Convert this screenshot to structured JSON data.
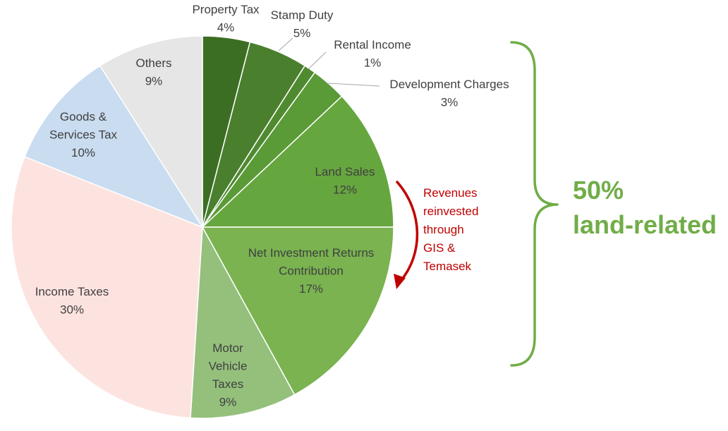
{
  "chart_data": {
    "type": "pie",
    "title": "",
    "slices": [
      {
        "label": "Property Tax",
        "value": 4,
        "display": "4%",
        "color": "#3b6e22"
      },
      {
        "label": "Stamp Duty",
        "value": 5,
        "display": "5%",
        "color": "#4a7f2e"
      },
      {
        "label": "Rental Income",
        "value": 1,
        "display": "1%",
        "color": "#4f8a30"
      },
      {
        "label": "Development Charges",
        "value": 3,
        "display": "3%",
        "color": "#5a9a37"
      },
      {
        "label": "Land Sales",
        "value": 12,
        "display": "12%",
        "color": "#66a63f"
      },
      {
        "label": "Net Investment Returns Contribution",
        "value": 17,
        "display": "17%",
        "color": "#7ab350"
      },
      {
        "label": "Motor Vehicle Taxes",
        "value": 9,
        "display": "9%",
        "color": "#94c07c"
      },
      {
        "label": "Income Taxes",
        "value": 30,
        "display": "30%",
        "color": "#fde3e0"
      },
      {
        "label": "Goods & Services Tax",
        "value": 10,
        "display": "10%",
        "color": "#c9dcf0"
      },
      {
        "label": "Others",
        "value": 9,
        "display": "9%",
        "color": "#e6e6e6"
      }
    ],
    "annotations": {
      "brace_text": [
        "50%",
        "land-related"
      ],
      "brace_color": "#70ad47",
      "arrow_text": [
        "Revenues",
        "reinvested",
        "through",
        "GIS &",
        "Temasek"
      ],
      "arrow_color": "#c00000"
    }
  }
}
